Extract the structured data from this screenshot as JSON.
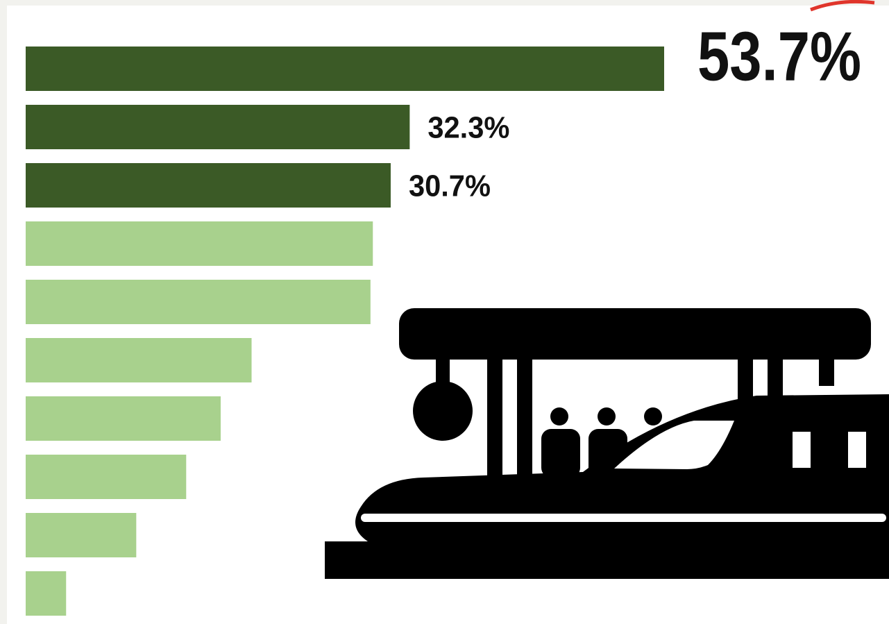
{
  "chart_data": {
    "type": "bar",
    "orientation": "horizontal",
    "categories": [
      null,
      null,
      null,
      null,
      null,
      null,
      null,
      null,
      null,
      null
    ],
    "values": [
      53.7,
      32.3,
      30.7,
      29.2,
      29.0,
      19.0,
      16.4,
      13.5,
      9.3,
      3.4
    ],
    "value_labels": [
      "53.7%",
      "32.3%",
      "30.7%",
      null,
      null,
      null,
      null,
      null,
      null,
      null
    ],
    "colors": [
      "#3b5a26",
      "#3b5a26",
      "#3b5a26",
      "#a8d18d",
      "#a8d18d",
      "#a8d18d",
      "#a8d18d",
      "#a8d18d",
      "#a8d18d",
      "#a8d18d"
    ],
    "xlim": [
      0,
      53.7
    ]
  }
}
